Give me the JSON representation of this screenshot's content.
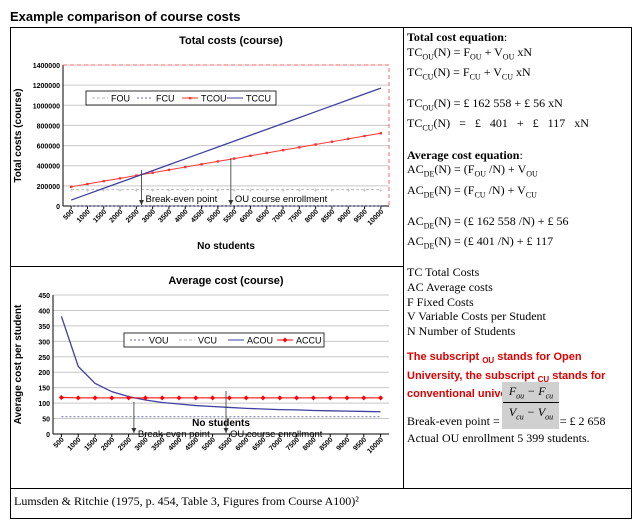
{
  "page_title": "Example comparison of course costs",
  "footnote": "Lumsden & Ritchie (1975, p. 454, Table 3, Figures from Course A100)²",
  "right_panel": {
    "total_heading": "Total cost equation",
    "total_colon": ":",
    "tc_eq1": "TC_OU(N) = F_OU + V_OU xN",
    "tc_eq2": "TC_CU(N) = F_CU + V_CU xN",
    "tc_num1": "TC_OU(N) = £ 162 558 + £ 56 xN",
    "tc_num2": "TC_CU(N)  =  £  401  +  £  117  xN",
    "avg_heading": "Average cost equation",
    "avg_colon": ":",
    "ac_eq1": "AC_DE(N) = (F_OU /N) + V_OU",
    "ac_eq2": "AC_DE(N) = (F_CU /N) + V_CU",
    "ac_num1": "AC_DE(N) = (£ 162 558 /N) + £ 56",
    "ac_num2": "AC_DE(N) = (£ 401 /N) + £ 117",
    "legend_items": [
      "TC Total Costs",
      "AC Average costs",
      "F Fixed Costs",
      "V Variable Costs per Student",
      "N Number of Students"
    ],
    "red_note": "The subscript OU stands for Open University, the subscript CU stands for conventional universities",
    "be_prefix": "Break-even point =",
    "be_frac_num": "F_ou − F_cu",
    "be_frac_den": "V_cu − V_ou",
    "be_value": "= £ 2 658",
    "actual_enrollment": "Actual OU enrollment 5 399 students."
  },
  "chart_data": [
    {
      "type": "line",
      "title": "Total costs (course)",
      "xlabel": "No students",
      "ylabel": "Total costs (course)",
      "x": [
        500,
        1000,
        1500,
        2000,
        2500,
        3000,
        3500,
        4000,
        4500,
        5000,
        5500,
        6000,
        6500,
        7000,
        7500,
        8000,
        8500,
        9000,
        9500,
        10000
      ],
      "ylim": [
        0,
        1400000
      ],
      "yticks": [
        0,
        200000,
        400000,
        600000,
        800000,
        1000000,
        1200000,
        1400000
      ],
      "ytick_labels": [
        "0",
        "200000",
        "400000",
        "600000",
        "800000",
        "1000000",
        "1200000",
        "1400000"
      ],
      "series": [
        {
          "name": "FOU",
          "color": "#bbbbbb",
          "values": [
            162558,
            162558,
            162558,
            162558,
            162558,
            162558,
            162558,
            162558,
            162558,
            162558,
            162558,
            162558,
            162558,
            162558,
            162558,
            162558,
            162558,
            162558,
            162558,
            162558
          ]
        },
        {
          "name": "FCU",
          "color": "#6a6ab0",
          "values": [
            401,
            401,
            401,
            401,
            401,
            401,
            401,
            401,
            401,
            401,
            401,
            401,
            401,
            401,
            401,
            401,
            401,
            401,
            401,
            401
          ]
        },
        {
          "name": "TCOU",
          "color": "#ff3333",
          "values": [
            190558,
            218558,
            246558,
            274558,
            302558,
            330558,
            358558,
            386558,
            414558,
            442558,
            470558,
            498558,
            526558,
            554558,
            582558,
            610558,
            638558,
            666558,
            694558,
            722558
          ]
        },
        {
          "name": "TCCU",
          "color": "#4040a0",
          "values": [
            58901,
            117401,
            175901,
            234401,
            292901,
            351401,
            409901,
            468401,
            526901,
            585401,
            643901,
            702401,
            760901,
            819401,
            877901,
            936401,
            994901,
            1053401,
            1111901,
            1170401
          ]
        }
      ],
      "annotations": [
        {
          "label": "Break-even point",
          "x": 2658
        },
        {
          "label": "OU course enrollment",
          "x": 5399
        }
      ]
    },
    {
      "type": "line",
      "title": "Average cost (course)",
      "xlabel": "No students",
      "ylabel": "Average cost per student",
      "x": [
        500,
        1000,
        1500,
        2000,
        2500,
        3000,
        3500,
        4000,
        4500,
        5000,
        5500,
        6000,
        6500,
        7000,
        7500,
        8000,
        8500,
        9000,
        9500,
        10000
      ],
      "ylim": [
        0,
        450
      ],
      "yticks": [
        0,
        50,
        100,
        150,
        200,
        250,
        300,
        350,
        400,
        450
      ],
      "ytick_labels": [
        "0",
        "50",
        "100",
        "150",
        "200",
        "250",
        "300",
        "350",
        "400",
        "450"
      ],
      "series": [
        {
          "name": "VOU",
          "color": "#6a6ab0",
          "values": [
            56,
            56,
            56,
            56,
            56,
            56,
            56,
            56,
            56,
            56,
            56,
            56,
            56,
            56,
            56,
            56,
            56,
            56,
            56,
            56
          ]
        },
        {
          "name": "VCU",
          "color": "#bbbbbb",
          "values": [
            117,
            117,
            117,
            117,
            117,
            117,
            117,
            117,
            117,
            117,
            117,
            117,
            117,
            117,
            117,
            117,
            117,
            117,
            117,
            117
          ]
        },
        {
          "name": "ACOU",
          "color": "#4040a0",
          "values": [
            381,
            219,
            164,
            137,
            121,
            110,
            102,
            97,
            92,
            89,
            86,
            83,
            81,
            79,
            78,
            76,
            75,
            74,
            73,
            72
          ]
        },
        {
          "name": "ACCU",
          "color": "#ff0000",
          "values": [
            118,
            117,
            117,
            117,
            117,
            117,
            117,
            117,
            117,
            117,
            117,
            117,
            117,
            117,
            117,
            117,
            117,
            117,
            117,
            117
          ]
        }
      ],
      "annotations": [
        {
          "label": "Break-even point",
          "x": 2658
        },
        {
          "label": "OU course enrollment",
          "x": 5399
        }
      ]
    }
  ]
}
